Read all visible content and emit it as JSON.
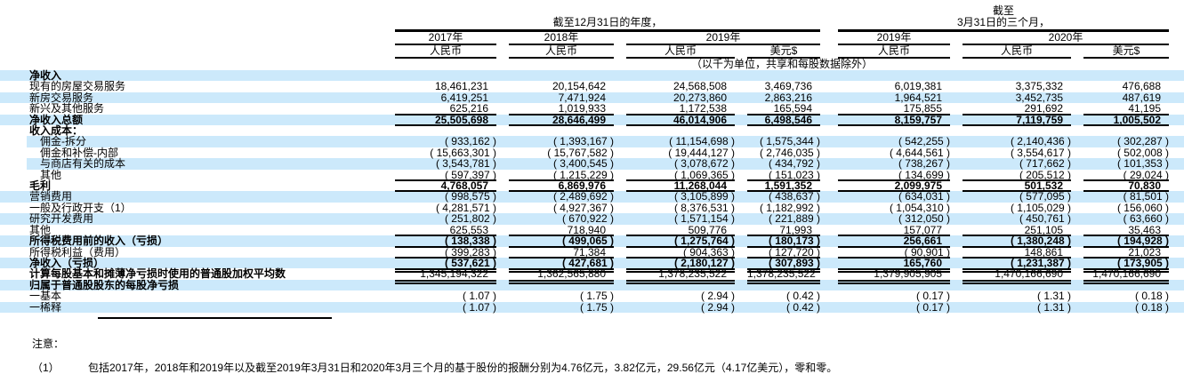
{
  "header": {
    "annual_title": "截至12月31日的年度，",
    "quarterly_title_line1": "截至",
    "quarterly_title_line2": "3月31日的三个月，",
    "unit_note": "（以千为单位，共享和每股数据除外）",
    "year_cols": [
      {
        "label": "2017年",
        "span": 1
      },
      {
        "label": "2018年",
        "span": 1
      },
      {
        "label": "2019年",
        "span": 2
      },
      {
        "label": "2019年",
        "span": 1
      },
      {
        "label": "2020年",
        "span": 2
      }
    ],
    "currency_cols": [
      "人民币",
      "人民币",
      "人民币",
      "美元$",
      "人民币",
      "人民币",
      "美元$"
    ]
  },
  "table": {
    "rows": [
      {
        "label": "净收入",
        "bold": "label",
        "stripe": true,
        "rule": "none",
        "cells": [
          "",
          "",
          "",
          "",
          "",
          "",
          ""
        ]
      },
      {
        "label": "现有的房屋交易服务",
        "bold": "none",
        "stripe": false,
        "rule": "none",
        "cells": [
          "18,461,231",
          "20,154,642",
          "24,568,508",
          "3,469,736",
          "6,019,381",
          "3,375,332",
          "476,688"
        ]
      },
      {
        "label": "新房交易服务",
        "bold": "none",
        "stripe": true,
        "rule": "none",
        "cells": [
          "6,419,251",
          "7,471,924",
          "20,273,860",
          "2,863,216",
          "1,964,521",
          "3,452,735",
          "487,619"
        ]
      },
      {
        "label": "新兴及其他服务",
        "bold": "none",
        "stripe": false,
        "rule": "single",
        "cells": [
          "625,216",
          "1,019,933",
          "1,172,538",
          "165,594",
          "175,855",
          "291,692",
          "41,195"
        ]
      },
      {
        "label": "净收入总额",
        "bold": "row",
        "stripe": true,
        "rule": "single",
        "cells": [
          "25,505,698",
          "28,646,499",
          "46,014,906",
          "6,498,546",
          "8,159,757",
          "7,119,759",
          "1,005,502"
        ]
      },
      {
        "label": "收入成本：",
        "bold": "label",
        "stripe": false,
        "rule": "none",
        "cells": [
          "",
          "",
          "",
          "",
          "",
          "",
          ""
        ]
      },
      {
        "label": "佣金-拆分",
        "indent": true,
        "bold": "none",
        "stripe": true,
        "stripe_indent": true,
        "rule": "none",
        "cells": [
          "( 933,162 )",
          "( 1,393,167 )",
          "( 11,154,698 )",
          "( 1,575,344 )",
          "( 542,255 )",
          "( 2,140,436 )",
          "( 302,287 )"
        ]
      },
      {
        "label": "佣金和补偿-内部",
        "indent": true,
        "bold": "none",
        "stripe": false,
        "rule": "none",
        "cells": [
          "( 15,663,301 )",
          "( 15,767,582 )",
          "( 19,444,127 )",
          "( 2,746,035 )",
          "( 4,644,561 )",
          "( 3,554,617 )",
          "( 502,008 )"
        ]
      },
      {
        "label": "与商店有关的成本",
        "indent": true,
        "bold": "none",
        "stripe": true,
        "stripe_indent": true,
        "rule": "none",
        "cells": [
          "( 3,543,781 )",
          "( 3,400,545 )",
          "( 3,078,672 )",
          "( 434,792 )",
          "( 738,267 )",
          "( 717,662 )",
          "( 101,353 )"
        ]
      },
      {
        "label": "其他",
        "indent": true,
        "bold": "none",
        "stripe": false,
        "rule": "single",
        "cells": [
          "( 597,397 )",
          "( 1,215,229 )",
          "( 1,069,365 )",
          "( 151,023 )",
          "( 134,699 )",
          "( 205,512 )",
          "( 29,024 )"
        ]
      },
      {
        "label": "毛利",
        "bold": "row",
        "stripe": false,
        "rule": "single",
        "cells": [
          "4,768,057",
          "6,869,976",
          "11,268,044",
          "1,591,352",
          "2,099,975",
          "501,532",
          "70,830"
        ]
      },
      {
        "label": "营销费用",
        "bold": "none",
        "stripe": true,
        "rule": "none",
        "cells": [
          "( 998,575 )",
          "( 2,489,692 )",
          "( 3,105,899 )",
          "( 438,637 )",
          "( 634,031 )",
          "( 577,095 )",
          "( 81,501 )"
        ]
      },
      {
        "label": "一般及行政开支（1）",
        "bold": "none",
        "stripe": false,
        "rule": "none",
        "cells": [
          "( 4,281,571 )",
          "( 4,927,367 )",
          "( 8,376,531 )",
          "( 1,182,992 )",
          "( 1,054,310 )",
          "( 1,105,029 )",
          "( 156,060 )"
        ]
      },
      {
        "label": "研究开发费用",
        "bold": "none",
        "stripe": true,
        "rule": "none",
        "cells": [
          "( 251,802 )",
          "( 670,922 )",
          "( 1,571,154 )",
          "( 221,889 )",
          "( 312,050 )",
          "( 450,761 )",
          "( 63,660 )"
        ]
      },
      {
        "label": "其他",
        "bold": "none",
        "stripe": false,
        "rule": "single",
        "cells": [
          "625,553",
          "718,940",
          "509,776",
          "71,993",
          "157,077",
          "251,105",
          "35,463"
        ]
      },
      {
        "label": "所得税费用前的收入（亏损）",
        "bold": "row",
        "stripe": true,
        "rule": "single",
        "cells": [
          "( 138,338 )",
          "( 499,065 )",
          "( 1,275,764 )",
          "( 180,173 )",
          "256,661",
          "( 1,380,248 )",
          "( 194,928 )"
        ]
      },
      {
        "label": "所得税利益（费用）",
        "bold": "none",
        "stripe": false,
        "rule": "single",
        "cells": [
          "( 399,283 )",
          "71,384",
          "( 904,363 )",
          "( 127,720 )",
          "( 90,901 )",
          "148,861",
          "21,023"
        ]
      },
      {
        "label": "净收入（亏损）",
        "bold": "row",
        "stripe": true,
        "rule": "double",
        "cells": [
          "( 537,621 )",
          "( 427,681 )",
          "( 2,180,127 )",
          "( 307,893 )",
          "165,760",
          "( 1,231,387 )",
          "( 173,905 )"
        ]
      },
      {
        "label": "计算每股基本和摊薄净亏损时使用的普通股加权平均数",
        "bold": "label",
        "stripe": false,
        "rule": "double",
        "cells": [
          "1,345,194,322",
          "1,362,565,880",
          "1,378,235,522",
          "1,378,235,522",
          "1,379,905,905",
          "1,470,166,690",
          "1,470,166,690"
        ]
      },
      {
        "label": "归属于普通股股东的每股净亏损",
        "bold": "label",
        "stripe": true,
        "rule": "none",
        "cells": [
          "",
          "",
          "",
          "",
          "",
          "",
          ""
        ]
      },
      {
        "label": "一基本",
        "bold": "none",
        "stripe": false,
        "rule": "none",
        "cells": [
          "( 1.07 )",
          "( 1.75 )",
          "( 2.94 )",
          "( 0.42 )",
          "( 0.17 )",
          "( 1.31 )",
          "( 0.18 )"
        ]
      },
      {
        "label": "一稀释",
        "bold": "none",
        "stripe": true,
        "rule": "none",
        "cells": [
          "( 1.07 )",
          "( 1.75 )",
          "( 2.94 )",
          "( 0.42 )",
          "( 0.17 )",
          "( 1.31 )",
          "( 0.18 )"
        ]
      }
    ]
  },
  "footnote": {
    "notice": "注意：",
    "marker": "（1）",
    "text": "包括2017年，2018年和2019年以及截至2019年3月31日和2020年3月三个月的基于股份的报酬分别为4.76亿元，3.82亿元，29.56亿元（4.17亿美元），零和零。"
  },
  "colors": {
    "stripe": "#cce9fb",
    "rule": "#000000",
    "text": "#000000",
    "background": "#ffffff"
  }
}
